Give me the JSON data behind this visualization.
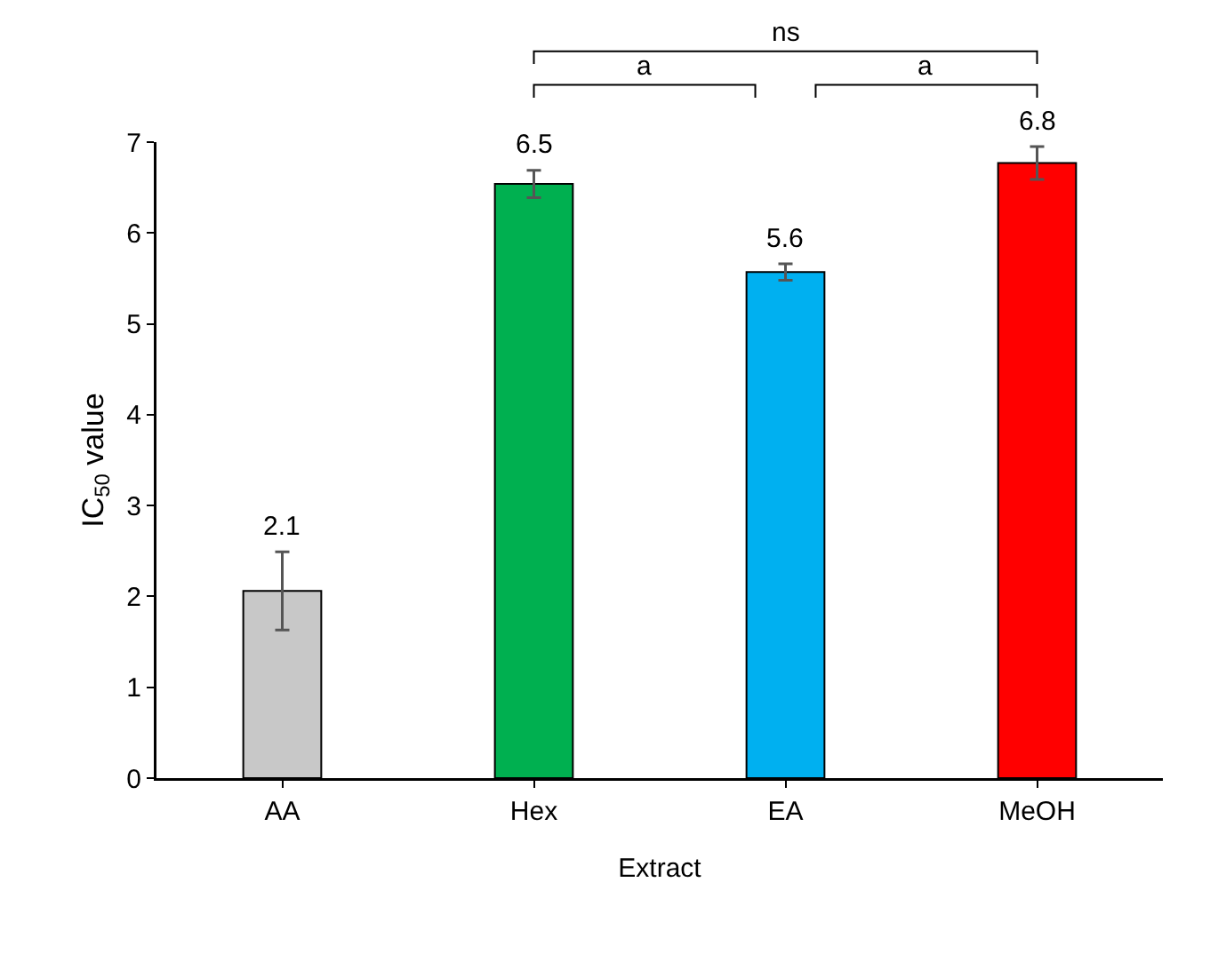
{
  "chart_data": {
    "type": "bar",
    "xlabel": "Extract",
    "ylabel": "IC$_{50}$ value",
    "categories": [
      "AA",
      "Hex",
      "EA",
      "MeOH"
    ],
    "values": [
      2.06,
      6.54,
      5.57,
      6.77
    ],
    "colors": [
      "#c8c8c8",
      "#00b050",
      "#00b0f0",
      "#ff0000"
    ],
    "errors": [
      0.43,
      0.15,
      0.09,
      0.18
    ],
    "value_labels": [
      "2.1",
      "6.5",
      "5.6",
      "6.8"
    ],
    "ylim": [
      0,
      7
    ],
    "yticks": [
      0,
      1,
      2,
      3,
      4,
      5,
      6,
      7
    ],
    "grid": false,
    "annotations": [
      "a",
      "a",
      "ns"
    ]
  }
}
